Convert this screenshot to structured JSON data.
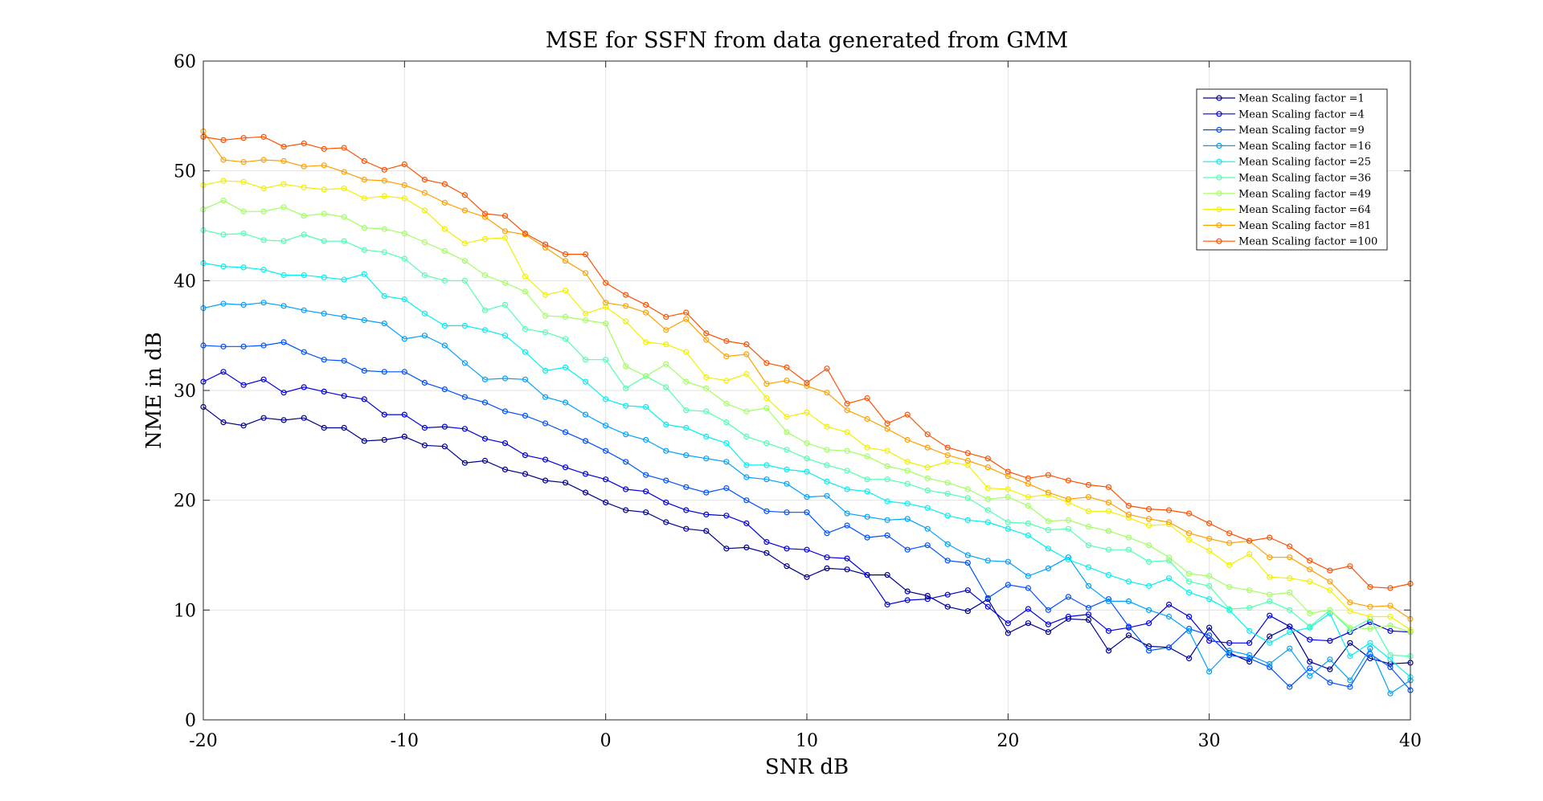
{
  "chart_data": {
    "type": "line",
    "title": "MSE for SSFN from data generated from GMM",
    "xlabel": "SNR dB",
    "ylabel": "NME in dB",
    "xlim": [
      -20,
      40
    ],
    "ylim": [
      0,
      60
    ],
    "xticks": [
      -20,
      -10,
      0,
      10,
      20,
      30,
      40
    ],
    "xtick_labels": [
      "-20",
      "-10",
      "0",
      "10",
      "20",
      "30",
      "40"
    ],
    "yticks": [
      0,
      10,
      20,
      30,
      40,
      50,
      60
    ],
    "ytick_labels": [
      "0",
      "10",
      "20",
      "30",
      "40",
      "50",
      "60"
    ],
    "grid": true,
    "legend_position": "top-right",
    "marker": "open-circle",
    "x": [
      -20,
      -19,
      -18,
      -17,
      -16,
      -15,
      -14,
      -13,
      -12,
      -11,
      -10,
      -9,
      -8,
      -7,
      -6,
      -5,
      -4,
      -3,
      -2,
      -1,
      0,
      1,
      2,
      3,
      4,
      5,
      6,
      7,
      8,
      9,
      10,
      11,
      12,
      13,
      14,
      15,
      16,
      17,
      18,
      19,
      20,
      21,
      22,
      23,
      24,
      25,
      26,
      27,
      28,
      29,
      30,
      31,
      32,
      33,
      34,
      35,
      36,
      37,
      38,
      39,
      40
    ],
    "series": [
      {
        "name": "Mean Scaling factor =1",
        "color": "#00008f",
        "values": [
          28.5,
          27.1,
          26.8,
          27.5,
          27.3,
          27.5,
          26.6,
          26.6,
          25.4,
          25.5,
          25.8,
          25.0,
          24.9,
          23.4,
          23.6,
          22.8,
          22.4,
          21.8,
          21.6,
          20.7,
          19.8,
          19.1,
          18.9,
          18.0,
          17.4,
          17.2,
          15.6,
          15.7,
          15.2,
          14.0,
          13.0,
          13.8,
          13.7,
          13.2,
          13.2,
          11.7,
          11.3,
          10.3,
          9.9,
          11.0,
          7.9,
          8.8,
          8.0,
          9.2,
          9.1,
          6.3,
          7.7,
          6.7,
          6.6,
          5.6,
          8.4,
          6.1,
          5.3,
          7.6,
          8.5,
          5.3,
          4.6,
          7.0,
          5.6,
          5.1,
          5.2
        ]
      },
      {
        "name": "Mean Scaling factor =4",
        "color": "#0000e0",
        "values": [
          30.8,
          31.7,
          30.5,
          31.0,
          29.8,
          30.3,
          29.9,
          29.5,
          29.2,
          27.8,
          27.8,
          26.6,
          26.7,
          26.5,
          25.6,
          25.2,
          24.1,
          23.7,
          23.0,
          22.4,
          21.9,
          21.0,
          20.8,
          19.8,
          19.1,
          18.7,
          18.6,
          17.9,
          16.2,
          15.6,
          15.5,
          14.8,
          14.7,
          13.2,
          10.5,
          10.9,
          11.0,
          11.4,
          11.8,
          10.3,
          8.8,
          10.1,
          8.7,
          9.4,
          9.6,
          8.1,
          8.4,
          8.8,
          10.5,
          9.4,
          7.2,
          7.0,
          7.0,
          9.5,
          8.5,
          7.3,
          7.2,
          8.0,
          8.9,
          8.1,
          8.0
        ]
      },
      {
        "name": "Mean Scaling factor =9",
        "color": "#0050ff",
        "values": [
          34.1,
          34.0,
          34.0,
          34.1,
          34.4,
          33.5,
          32.8,
          32.7,
          31.8,
          31.7,
          31.7,
          30.7,
          30.1,
          29.4,
          28.9,
          28.1,
          27.7,
          27.0,
          26.2,
          25.4,
          24.5,
          23.5,
          22.3,
          21.8,
          21.2,
          20.7,
          21.1,
          20.0,
          19.0,
          18.9,
          18.9,
          17.0,
          17.7,
          16.6,
          16.8,
          15.5,
          15.9,
          14.5,
          14.3,
          11.1,
          12.3,
          12.0,
          10.0,
          11.2,
          10.2,
          11.0,
          8.5,
          6.3,
          6.6,
          8.3,
          7.7,
          5.9,
          5.6,
          4.8,
          3.0,
          4.7,
          3.4,
          3.0,
          6.0,
          4.8,
          2.7
        ]
      },
      {
        "name": "Mean Scaling factor =16",
        "color": "#00a0ff",
        "values": [
          37.5,
          37.9,
          37.8,
          38.0,
          37.7,
          37.3,
          37.0,
          36.7,
          36.4,
          36.1,
          34.7,
          35.0,
          34.1,
          32.5,
          31.0,
          31.1,
          31.0,
          29.4,
          28.9,
          27.8,
          26.8,
          26.0,
          25.5,
          24.5,
          24.1,
          23.8,
          23.5,
          22.1,
          21.9,
          21.5,
          20.3,
          20.4,
          18.8,
          18.5,
          18.2,
          18.3,
          17.4,
          16.0,
          15.0,
          14.5,
          14.4,
          13.1,
          13.8,
          14.8,
          12.2,
          10.8,
          10.8,
          10.0,
          9.4,
          8.1,
          4.4,
          6.3,
          5.9,
          5.1,
          6.5,
          4.0,
          5.5,
          3.6,
          6.5,
          2.4,
          3.6
        ]
      },
      {
        "name": "Mean Scaling factor =25",
        "color": "#00f0f0",
        "values": [
          41.6,
          41.3,
          41.2,
          41.0,
          40.5,
          40.5,
          40.3,
          40.1,
          40.6,
          38.6,
          38.3,
          37.0,
          35.9,
          35.9,
          35.5,
          35.0,
          33.5,
          31.8,
          32.1,
          30.8,
          29.2,
          28.6,
          28.5,
          26.9,
          26.6,
          25.8,
          25.2,
          23.2,
          23.2,
          22.8,
          22.6,
          21.7,
          21.0,
          20.8,
          19.9,
          19.7,
          19.3,
          18.6,
          18.2,
          18.0,
          17.4,
          16.8,
          15.6,
          14.6,
          13.9,
          13.2,
          12.6,
          12.2,
          12.9,
          11.6,
          11.0,
          10.0,
          8.1,
          7.0,
          8.0,
          8.4,
          9.7,
          5.8,
          7.0,
          5.5,
          3.9
        ]
      },
      {
        "name": "Mean Scaling factor =36",
        "color": "#50ffb0",
        "values": [
          44.6,
          44.2,
          44.3,
          43.7,
          43.6,
          44.2,
          43.6,
          43.6,
          42.8,
          42.6,
          42.0,
          40.5,
          40.0,
          40.0,
          37.3,
          37.8,
          35.6,
          35.3,
          34.7,
          32.8,
          32.8,
          30.2,
          31.3,
          30.3,
          28.2,
          28.1,
          27.1,
          25.8,
          25.2,
          24.6,
          23.8,
          23.2,
          22.7,
          21.9,
          21.9,
          21.5,
          20.9,
          20.6,
          20.2,
          19.1,
          18.0,
          17.9,
          17.3,
          17.4,
          15.9,
          15.5,
          15.5,
          14.4,
          14.5,
          12.6,
          12.2,
          10.1,
          10.2,
          10.8,
          10.0,
          8.5,
          10.0,
          8.2,
          9.2,
          5.9,
          5.8
        ]
      },
      {
        "name": "Mean Scaling factor =49",
        "color": "#a0ff60",
        "values": [
          46.5,
          47.3,
          46.3,
          46.3,
          46.7,
          45.9,
          46.1,
          45.8,
          44.8,
          44.7,
          44.3,
          43.5,
          42.7,
          41.8,
          40.5,
          39.8,
          39.0,
          36.8,
          36.7,
          36.4,
          36.1,
          32.2,
          31.3,
          32.4,
          30.8,
          30.2,
          28.8,
          28.1,
          28.4,
          26.2,
          25.2,
          24.6,
          24.5,
          24.0,
          23.1,
          22.7,
          22.0,
          21.6,
          21.0,
          20.1,
          20.3,
          19.5,
          18.1,
          18.2,
          17.6,
          17.2,
          16.6,
          15.9,
          14.8,
          13.3,
          13.1,
          12.1,
          11.8,
          11.4,
          11.6,
          9.7,
          10.0,
          8.4,
          8.3,
          8.6,
          8.0
        ]
      },
      {
        "name": "Mean Scaling factor =64",
        "color": "#f0f000",
        "values": [
          48.7,
          49.1,
          49.0,
          48.4,
          48.8,
          48.5,
          48.3,
          48.4,
          47.5,
          47.7,
          47.5,
          46.4,
          44.7,
          43.4,
          43.8,
          43.9,
          40.4,
          38.7,
          39.1,
          37.0,
          37.6,
          36.3,
          34.4,
          34.2,
          33.5,
          31.2,
          30.9,
          31.5,
          29.3,
          27.6,
          28.0,
          26.7,
          26.2,
          24.8,
          24.5,
          23.5,
          23.0,
          23.5,
          23.2,
          21.1,
          21.0,
          20.3,
          20.5,
          19.8,
          19.0,
          19.0,
          18.4,
          17.7,
          17.8,
          16.4,
          15.4,
          14.1,
          15.1,
          13.0,
          12.9,
          12.6,
          11.8,
          9.9,
          9.4,
          9.4,
          8.2
        ]
      },
      {
        "name": "Mean Scaling factor =81",
        "color": "#ffa000",
        "values": [
          53.6,
          51.0,
          50.8,
          51.0,
          50.9,
          50.4,
          50.5,
          49.9,
          49.2,
          49.1,
          48.7,
          48.0,
          47.1,
          46.4,
          45.8,
          44.5,
          44.2,
          43.0,
          41.8,
          40.7,
          38.0,
          37.7,
          37.1,
          35.5,
          36.5,
          34.6,
          33.1,
          33.3,
          30.6,
          30.9,
          30.4,
          29.8,
          28.2,
          27.4,
          26.5,
          25.5,
          24.8,
          24.1,
          23.6,
          23.0,
          22.2,
          21.5,
          20.7,
          20.1,
          20.3,
          19.8,
          18.7,
          18.3,
          18.0,
          17.0,
          16.5,
          16.1,
          16.3,
          14.8,
          14.8,
          13.7,
          12.6,
          10.7,
          10.3,
          10.4,
          9.2
        ]
      },
      {
        "name": "Mean Scaling factor =100",
        "color": "#ff5000",
        "values": [
          53.1,
          52.8,
          53.0,
          53.1,
          52.2,
          52.5,
          52.0,
          52.1,
          50.9,
          50.1,
          50.6,
          49.2,
          48.8,
          47.8,
          46.1,
          45.9,
          44.3,
          43.3,
          42.4,
          42.4,
          39.8,
          38.7,
          37.8,
          36.7,
          37.1,
          35.2,
          34.5,
          34.2,
          32.5,
          32.1,
          30.7,
          32.0,
          28.8,
          29.3,
          27.0,
          27.8,
          26.0,
          24.8,
          24.3,
          23.8,
          22.6,
          22.0,
          22.3,
          21.8,
          21.4,
          21.2,
          19.5,
          19.2,
          19.1,
          18.8,
          17.9,
          17.0,
          16.3,
          16.6,
          15.8,
          14.5,
          13.6,
          14.0,
          12.1,
          12.0,
          12.4
        ]
      }
    ]
  }
}
